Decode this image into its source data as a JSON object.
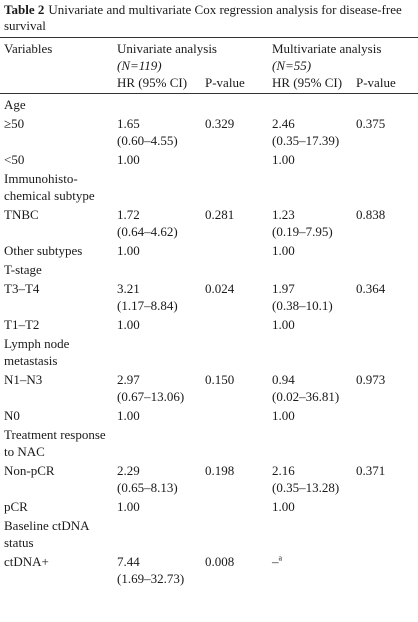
{
  "header": {
    "label": "Table 2",
    "title": "Univariate and multivariate Cox regression analysis for disease-free survival"
  },
  "table": {
    "columns": {
      "variables": "Variables",
      "univariate": "Univariate analysis",
      "univariate_n": "(N=119)",
      "multivariate": "Multivariate analysis",
      "multivariate_n": "(N=55)",
      "uni_hr": "HR (95% CI)",
      "uni_p": "P-value",
      "multi_hr": "HR (95% CI)",
      "multi_p": "P-value"
    },
    "rows": [
      {
        "group": "Age"
      },
      {
        "variable": "≥50",
        "uni_hr": "1.65",
        "uni_ci": "(0.60–4.55)",
        "uni_p": "0.329",
        "multi_hr": "2.46",
        "multi_ci": "(0.35–17.39)",
        "multi_p": "0.375"
      },
      {
        "variable": "<50",
        "uni_hr": "1.00",
        "multi_hr": "1.00"
      },
      {
        "group": "Immunohisto-chemical subtype"
      },
      {
        "variable": "TNBC",
        "uni_hr": "1.72",
        "uni_ci": "(0.64–4.62)",
        "uni_p": "0.281",
        "multi_hr": "1.23",
        "multi_ci": "(0.19–7.95)",
        "multi_p": "0.838"
      },
      {
        "variable": "Other subtypes",
        "uni_hr": "1.00",
        "multi_hr": "1.00"
      },
      {
        "group": "T-stage"
      },
      {
        "variable": "T3–T4",
        "uni_hr": "3.21",
        "uni_ci": "(1.17–8.84)",
        "uni_p": "0.024",
        "multi_hr": "1.97",
        "multi_ci": "(0.38–10.1)",
        "multi_p": "0.364"
      },
      {
        "variable": "T1–T2",
        "uni_hr": "1.00",
        "multi_hr": "1.00"
      },
      {
        "group": "Lymph node metastasis"
      },
      {
        "variable": "N1–N3",
        "uni_hr": "2.97",
        "uni_ci": "(0.67–13.06)",
        "uni_p": "0.150",
        "multi_hr": "0.94",
        "multi_ci": "(0.02–36.81)",
        "multi_p": "0.973"
      },
      {
        "variable": "N0",
        "uni_hr": "1.00",
        "multi_hr": "1.00"
      },
      {
        "group": "Treatment response to NAC"
      },
      {
        "variable": "Non-pCR",
        "uni_hr": "2.29",
        "uni_ci": "(0.65–8.13)",
        "uni_p": "0.198",
        "multi_hr": "2.16",
        "multi_ci": "(0.35–13.28)",
        "multi_p": "0.371"
      },
      {
        "variable": "pCR",
        "uni_hr": "1.00",
        "multi_hr": "1.00"
      },
      {
        "group": "Baseline ctDNA status"
      },
      {
        "variable": "ctDNA+",
        "uni_hr": "7.44",
        "uni_ci": "(1.69–32.73)",
        "uni_p": "0.008",
        "multi_hr": "–",
        "multi_note": "a"
      }
    ]
  }
}
